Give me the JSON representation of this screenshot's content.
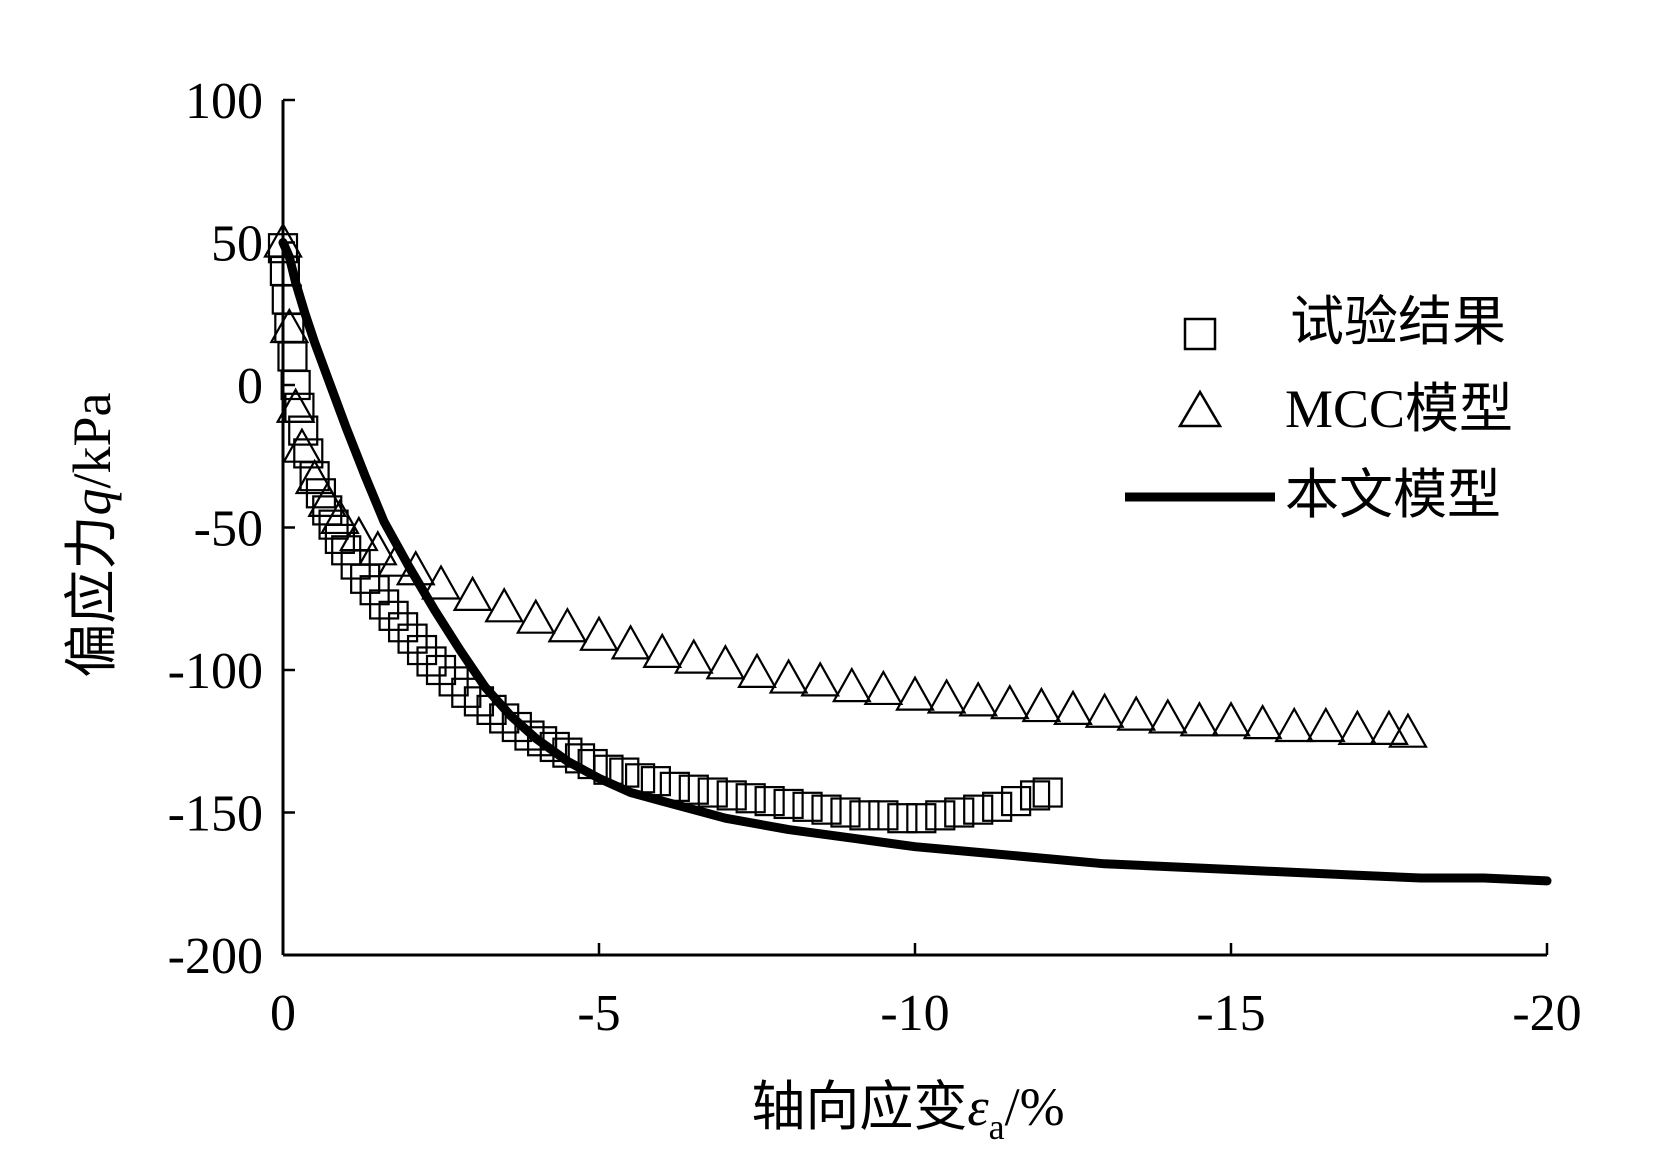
{
  "chart_data": {
    "type": "scatter",
    "xlabel": "轴向应变",
    "xlabel_symbol": "ε",
    "xlabel_subscript": "a",
    "xlabel_unit": "/%",
    "ylabel": "偏应力",
    "ylabel_symbol": "q",
    "ylabel_unit": "/kPa",
    "xlim": [
      0,
      -20
    ],
    "ylim": [
      -200,
      100
    ],
    "xticks": [
      0,
      -5,
      -10,
      -15,
      -20
    ],
    "xtick_labels": [
      "0",
      "-5",
      "-10",
      "-15",
      "-20"
    ],
    "yticks": [
      100,
      50,
      0,
      -50,
      -100,
      -150,
      -200
    ],
    "ytick_labels": [
      "100",
      "50",
      "0",
      "-50",
      "-100",
      "-150",
      "-200"
    ],
    "grid": false,
    "legend_position": "right",
    "series": [
      {
        "name": "试验结果",
        "marker": "square",
        "color": "#000000",
        "x": [
          0,
          -0.03,
          -0.06,
          -0.1,
          -0.15,
          -0.2,
          -0.26,
          -0.32,
          -0.4,
          -0.5,
          -0.6,
          -0.7,
          -0.8,
          -0.9,
          -1.0,
          -1.15,
          -1.3,
          -1.45,
          -1.6,
          -1.75,
          -1.9,
          -2.05,
          -2.2,
          -2.35,
          -2.5,
          -2.7,
          -2.9,
          -3.1,
          -3.3,
          -3.5,
          -3.7,
          -3.9,
          -4.1,
          -4.3,
          -4.5,
          -4.7,
          -4.9,
          -5.15,
          -5.4,
          -5.65,
          -5.9,
          -6.2,
          -6.5,
          -6.8,
          -7.1,
          -7.4,
          -7.7,
          -8.0,
          -8.3,
          -8.6,
          -8.9,
          -9.2,
          -9.5,
          -9.8,
          -10.1,
          -10.4,
          -10.7,
          -11.0,
          -11.3,
          -11.6,
          -11.9,
          -12.1
        ],
        "y": [
          48,
          40,
          30,
          20,
          10,
          0,
          -8,
          -16,
          -24,
          -32,
          -38,
          -44,
          -49,
          -54,
          -58,
          -63,
          -68,
          -72,
          -77,
          -81,
          -85,
          -89,
          -93,
          -97,
          -100,
          -104,
          -108,
          -111,
          -114,
          -117,
          -120,
          -123,
          -125,
          -127,
          -129,
          -131,
          -133,
          -135,
          -136,
          -138,
          -139,
          -141,
          -142,
          -143,
          -144,
          -145,
          -146,
          -147,
          -148,
          -149,
          -150,
          -151,
          -151,
          -152,
          -152,
          -151,
          -150,
          -149,
          -148,
          -146,
          -144,
          -143
        ]
      },
      {
        "name": "MCC模型",
        "marker": "triangle",
        "color": "#000000",
        "x": [
          0,
          -0.1,
          -0.2,
          -0.3,
          -0.5,
          -0.7,
          -0.9,
          -1.2,
          -1.5,
          -1.8,
          -2.1,
          -2.5,
          -3.0,
          -3.5,
          -4.0,
          -4.5,
          -5.0,
          -5.5,
          -6.0,
          -6.5,
          -7.0,
          -7.5,
          -8.0,
          -8.5,
          -9.0,
          -9.5,
          -10.0,
          -10.5,
          -11.0,
          -11.5,
          -12.0,
          -12.5,
          -13.0,
          -13.5,
          -14.0,
          -14.5,
          -15.0,
          -15.5,
          -16.0,
          -16.5,
          -17.0,
          -17.5,
          -17.8
        ],
        "y": [
          50,
          20,
          -8,
          -22,
          -33,
          -41,
          -47,
          -53,
          -58,
          -62,
          -65,
          -70,
          -74,
          -78,
          -82,
          -85,
          -88,
          -91,
          -94,
          -96,
          -98,
          -101,
          -103,
          -104,
          -106,
          -107,
          -109,
          -110,
          -111,
          -112,
          -113,
          -114,
          -115,
          -116,
          -117,
          -118,
          -118,
          -119,
          -120,
          -120,
          -121,
          -121,
          -122
        ]
      },
      {
        "name": "本文模型",
        "marker": "line",
        "color": "#000000",
        "x": [
          0,
          -0.1,
          -0.2,
          -0.35,
          -0.5,
          -0.7,
          -1.0,
          -1.3,
          -1.6,
          -2.0,
          -2.4,
          -2.8,
          -3.2,
          -3.6,
          -4.0,
          -4.5,
          -5.0,
          -5.5,
          -6.0,
          -6.5,
          -7.0,
          -8.0,
          -9.0,
          -10.0,
          -11.0,
          -12.0,
          -13.0,
          -14.0,
          -15.0,
          -16.0,
          -17.0,
          -18.0,
          -19.0,
          -20.0
        ],
        "y": [
          50,
          45,
          36,
          25,
          15,
          3,
          -15,
          -32,
          -48,
          -64,
          -79,
          -93,
          -106,
          -116,
          -124,
          -132,
          -138,
          -143,
          -146,
          -149,
          -152,
          -156,
          -159,
          -162,
          -164,
          -166,
          -168,
          -169,
          -170,
          -171,
          -172,
          -173,
          -173,
          -174
        ]
      }
    ]
  }
}
